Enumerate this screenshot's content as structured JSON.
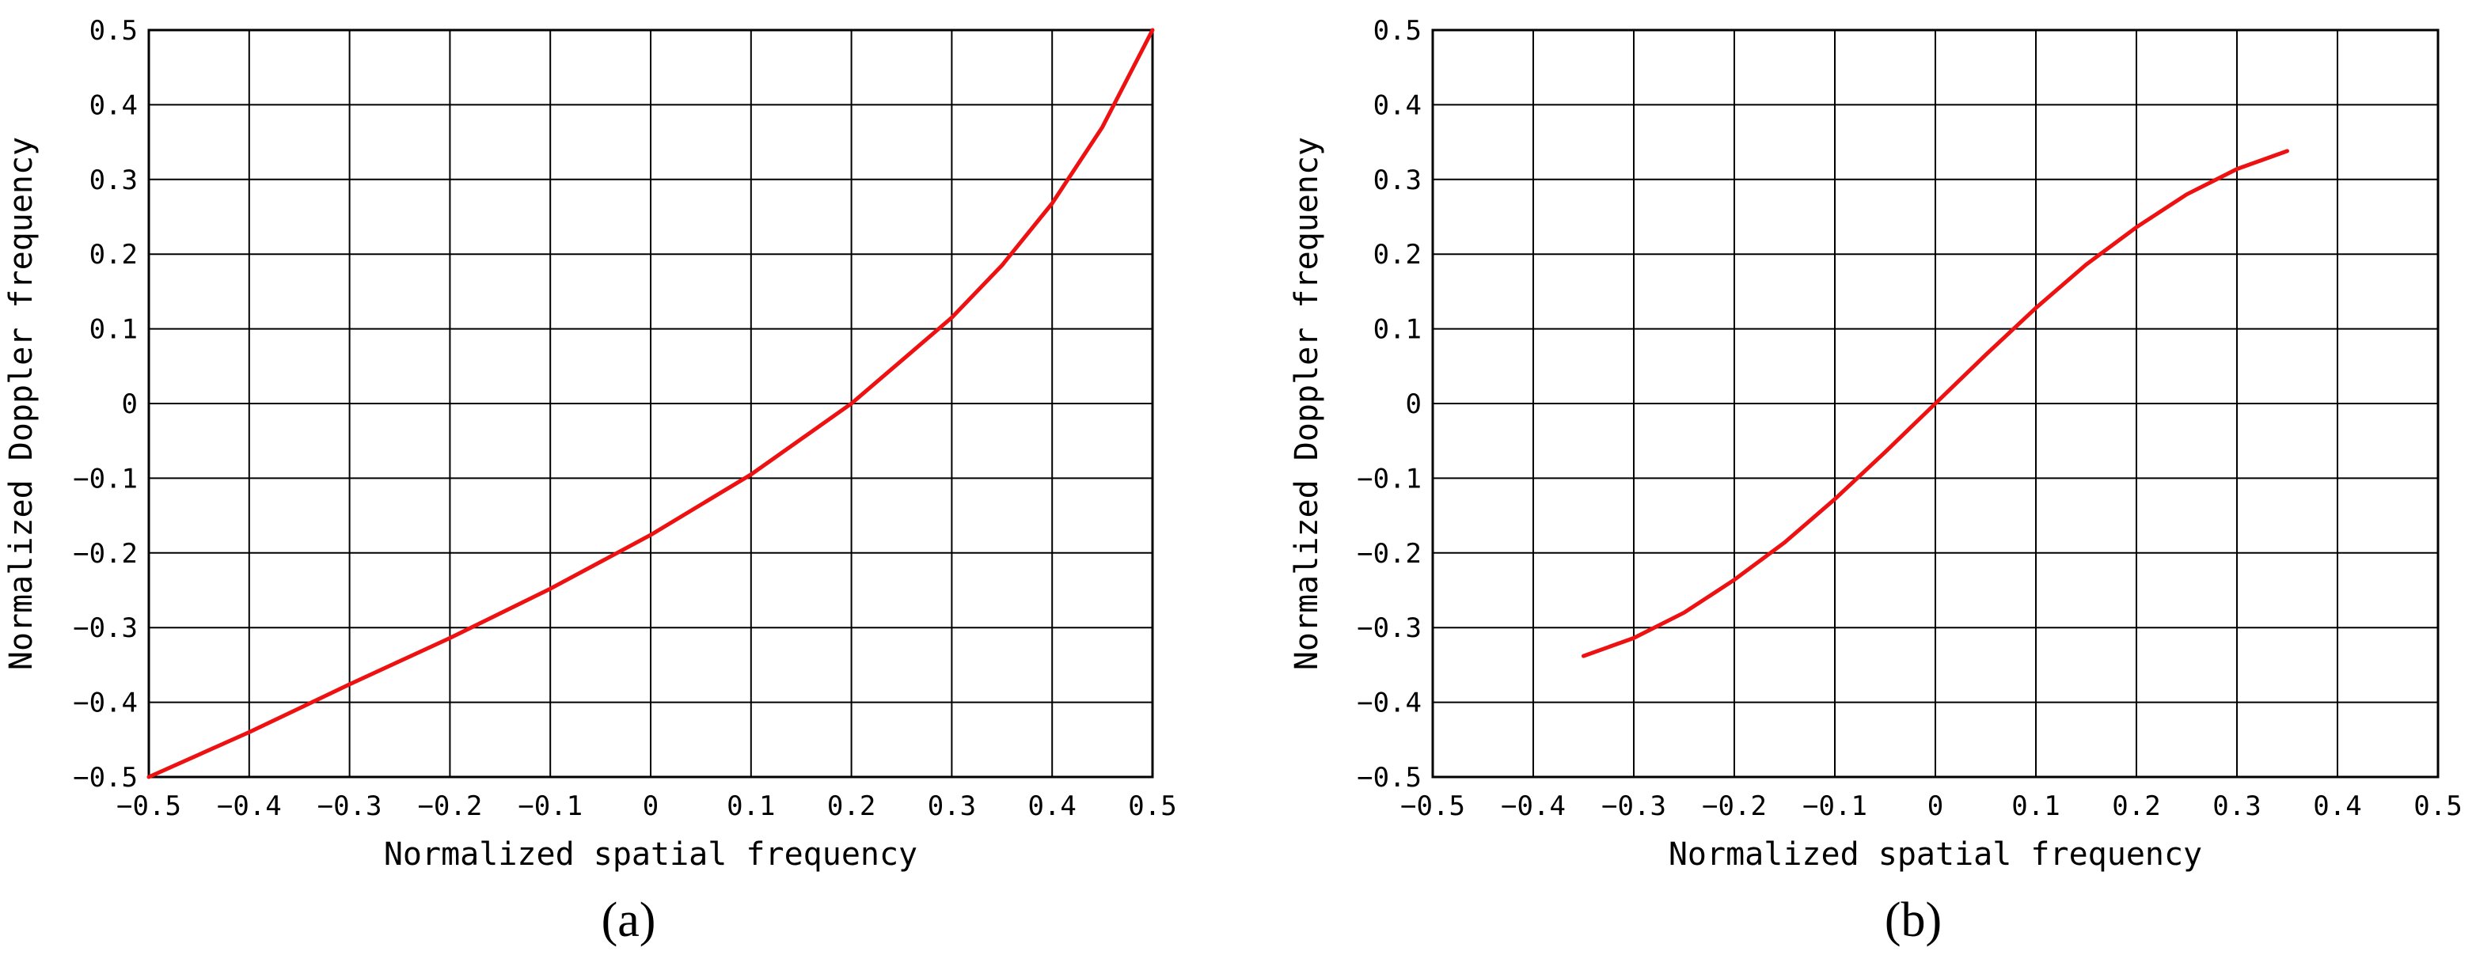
{
  "chart_data": [
    {
      "type": "line",
      "panel_label": "(a)",
      "xlabel": "Normalized spatial frequency",
      "ylabel": "Normalized Doppler frequency",
      "xlim": [
        -0.5,
        0.5
      ],
      "ylim": [
        -0.5,
        0.5
      ],
      "grid": true,
      "x_ticks": [
        -0.5,
        -0.4,
        -0.3,
        -0.2,
        -0.1,
        0,
        0.1,
        0.2,
        0.3,
        0.4,
        0.5
      ],
      "x_tick_labels": [
        "−0.5",
        "−0.4",
        "−0.3",
        "−0.2",
        "−0.1",
        "0",
        "0.1",
        "0.2",
        "0.3",
        "0.4",
        "0.5"
      ],
      "y_ticks": [
        -0.5,
        -0.4,
        -0.3,
        -0.2,
        -0.1,
        0,
        0.1,
        0.2,
        0.3,
        0.4,
        0.5
      ],
      "y_tick_labels": [
        "−0.5",
        "−0.4",
        "−0.3",
        "−0.2",
        "−0.1",
        "0",
        "0.1",
        "0.2",
        "0.3",
        "0.4",
        "0.5"
      ],
      "series": [
        {
          "color": "#ee1111",
          "x": [
            -0.5,
            -0.4,
            -0.3,
            -0.2,
            -0.1,
            0.0,
            0.1,
            0.2,
            0.3,
            0.35,
            0.4,
            0.45,
            0.5
          ],
          "y": [
            -0.5,
            -0.44,
            -0.376,
            -0.314,
            -0.248,
            -0.176,
            -0.095,
            0.0,
            0.115,
            0.185,
            0.268,
            0.37,
            0.5
          ]
        }
      ]
    },
    {
      "type": "line",
      "panel_label": "(b)",
      "xlabel": "Normalized spatial frequency",
      "ylabel": "Normalized Doppler frequency",
      "xlim": [
        -0.5,
        0.5
      ],
      "ylim": [
        -0.5,
        0.5
      ],
      "grid": true,
      "x_ticks": [
        -0.5,
        -0.4,
        -0.3,
        -0.2,
        -0.1,
        0,
        0.1,
        0.2,
        0.3,
        0.4,
        0.5
      ],
      "x_tick_labels": [
        "−0.5",
        "−0.4",
        "−0.3",
        "−0.2",
        "−0.1",
        "0",
        "0.1",
        "0.2",
        "0.3",
        "0.4",
        "0.5"
      ],
      "y_ticks": [
        -0.5,
        -0.4,
        -0.3,
        -0.2,
        -0.1,
        0,
        0.1,
        0.2,
        0.3,
        0.4,
        0.5
      ],
      "y_tick_labels": [
        "−0.5",
        "−0.4",
        "−0.3",
        "−0.2",
        "−0.1",
        "0",
        "0.1",
        "0.2",
        "0.3",
        "0.4",
        "0.5"
      ],
      "series": [
        {
          "color": "#ee1111",
          "x": [
            -0.35,
            -0.3,
            -0.25,
            -0.2,
            -0.15,
            -0.1,
            -0.05,
            0.0,
            0.05,
            0.1,
            0.15,
            0.2,
            0.25,
            0.3,
            0.35
          ],
          "y": [
            -0.338,
            -0.314,
            -0.28,
            -0.236,
            -0.186,
            -0.128,
            -0.065,
            0.0,
            0.065,
            0.128,
            0.186,
            0.236,
            0.28,
            0.314,
            0.338
          ]
        }
      ]
    }
  ]
}
